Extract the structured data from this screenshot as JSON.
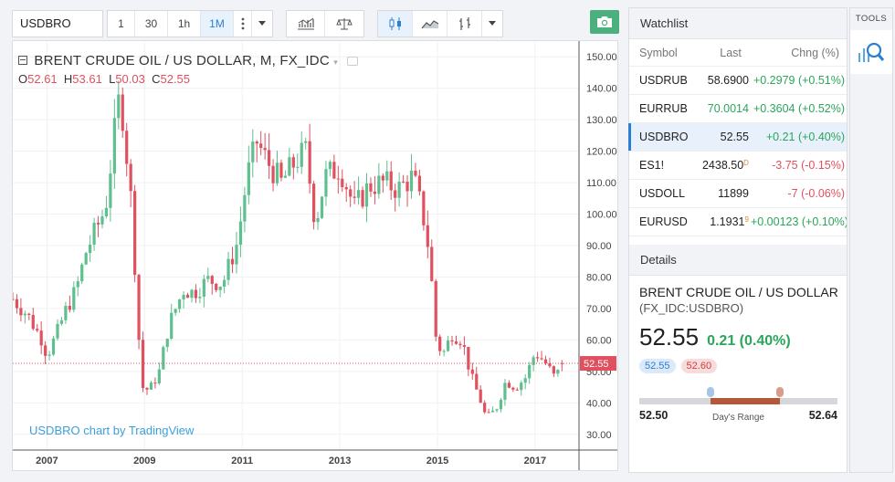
{
  "toolbar": {
    "symbol": "USDBRO",
    "intervals": [
      "1",
      "30",
      "1h",
      "1M"
    ],
    "active_interval": "1M",
    "icons": [
      "more-vertical-icon",
      "chevron-down-icon",
      "indicators-icon",
      "compare-icon",
      "candles-icon",
      "line-chart-icon",
      "bars-icon",
      "chevron-down-icon",
      "camera-icon"
    ]
  },
  "legend": {
    "title": "BRENT CRUDE OIL / US DOLLAR, M, FX_IDC",
    "o_label": "O",
    "o": "52.61",
    "h_label": "H",
    "h": "53.61",
    "l_label": "L",
    "l": "50.03",
    "c_label": "C",
    "c": "52.55"
  },
  "watermark": "USDBRO chart by TradingView",
  "colors": {
    "up": "#5fbf8f",
    "down": "#e0505f",
    "accent": "#2a7fd4",
    "price_line": "#e0505f"
  },
  "chart_data": {
    "type": "candlestick",
    "title": "BRENT CRUDE OIL / US DOLLAR, M, FX_IDC",
    "y_ticks": [
      "150.00",
      "140.00",
      "130.00",
      "120.00",
      "110.00",
      "100.00",
      "90.00",
      "80.00",
      "70.00",
      "60.00",
      "50.00",
      "40.00",
      "30.00"
    ],
    "ylim": [
      25,
      155
    ],
    "x_ticks": [
      "2007",
      "2009",
      "2011",
      "2013",
      "2015",
      "2017"
    ],
    "x_tick_years": [
      2007,
      2009,
      2011,
      2013,
      2015,
      2017
    ],
    "xlim": [
      2006.3,
      2017.9
    ],
    "last_price": 52.55,
    "last_price_label": "52.55",
    "closes": [
      {
        "x": 2006.3,
        "y": 73
      },
      {
        "x": 2006.6,
        "y": 68
      },
      {
        "x": 2006.9,
        "y": 60
      },
      {
        "x": 2007.0,
        "y": 55
      },
      {
        "x": 2007.2,
        "y": 62
      },
      {
        "x": 2007.4,
        "y": 70
      },
      {
        "x": 2007.6,
        "y": 76
      },
      {
        "x": 2007.8,
        "y": 88
      },
      {
        "x": 2008.0,
        "y": 95
      },
      {
        "x": 2008.2,
        "y": 102
      },
      {
        "x": 2008.4,
        "y": 128
      },
      {
        "x": 2008.5,
        "y": 139
      },
      {
        "x": 2008.6,
        "y": 124
      },
      {
        "x": 2008.75,
        "y": 100
      },
      {
        "x": 2008.85,
        "y": 68
      },
      {
        "x": 2008.95,
        "y": 45
      },
      {
        "x": 2009.1,
        "y": 44
      },
      {
        "x": 2009.3,
        "y": 50
      },
      {
        "x": 2009.5,
        "y": 65
      },
      {
        "x": 2009.8,
        "y": 76
      },
      {
        "x": 2010.0,
        "y": 75
      },
      {
        "x": 2010.3,
        "y": 79
      },
      {
        "x": 2010.6,
        "y": 78
      },
      {
        "x": 2010.9,
        "y": 91
      },
      {
        "x": 2011.1,
        "y": 112
      },
      {
        "x": 2011.3,
        "y": 123
      },
      {
        "x": 2011.5,
        "y": 117
      },
      {
        "x": 2011.8,
        "y": 110
      },
      {
        "x": 2012.1,
        "y": 117
      },
      {
        "x": 2012.3,
        "y": 120
      },
      {
        "x": 2012.5,
        "y": 97
      },
      {
        "x": 2012.7,
        "y": 112
      },
      {
        "x": 2013.0,
        "y": 115
      },
      {
        "x": 2013.3,
        "y": 102
      },
      {
        "x": 2013.6,
        "y": 109
      },
      {
        "x": 2013.9,
        "y": 110
      },
      {
        "x": 2014.2,
        "y": 108
      },
      {
        "x": 2014.5,
        "y": 112
      },
      {
        "x": 2014.7,
        "y": 100
      },
      {
        "x": 2014.85,
        "y": 86
      },
      {
        "x": 2014.95,
        "y": 62
      },
      {
        "x": 2015.1,
        "y": 55
      },
      {
        "x": 2015.3,
        "y": 62
      },
      {
        "x": 2015.5,
        "y": 60
      },
      {
        "x": 2015.7,
        "y": 48
      },
      {
        "x": 2015.9,
        "y": 40
      },
      {
        "x": 2016.0,
        "y": 35
      },
      {
        "x": 2016.2,
        "y": 38
      },
      {
        "x": 2016.4,
        "y": 47
      },
      {
        "x": 2016.6,
        "y": 45
      },
      {
        "x": 2016.8,
        "y": 48
      },
      {
        "x": 2017.0,
        "y": 56
      },
      {
        "x": 2017.2,
        "y": 53
      },
      {
        "x": 2017.4,
        "y": 48
      },
      {
        "x": 2017.6,
        "y": 52.55
      }
    ]
  },
  "watchlist": {
    "title": "Watchlist",
    "columns": [
      "Symbol",
      "Last",
      "Chng (%)"
    ],
    "rows": [
      {
        "symbol": "USDRUB",
        "last": "58.6900",
        "last_sup": "",
        "chg": "+0.2979 (+0.51%)",
        "dir": "up",
        "last_colored": false
      },
      {
        "symbol": "EURRUB",
        "last": "70.0014",
        "last_sup": "",
        "chg": "+0.3604 (+0.52%)",
        "dir": "up",
        "last_colored": true
      },
      {
        "symbol": "USDBRO",
        "last": "52.55",
        "last_sup": "",
        "chg": "+0.21 (+0.40%)",
        "dir": "up",
        "last_colored": false,
        "selected": true
      },
      {
        "symbol": "ES1!",
        "last": "2438.50",
        "last_sup": "D",
        "chg": "-3.75 (-0.15%)",
        "dir": "down",
        "last_colored": false
      },
      {
        "symbol": "USDOLL",
        "last": "11899",
        "last_sup": "",
        "chg": "-7 (-0.06%)",
        "dir": "down",
        "last_colored": false
      },
      {
        "symbol": "EURUSD",
        "last": "1.1931",
        "last_sup": "9",
        "chg": "+0.00123 (+0.10%)",
        "dir": "up",
        "last_colored": false
      }
    ]
  },
  "details": {
    "title": "Details",
    "name": "BRENT CRUDE OIL / US DOLLAR",
    "exchange": "(FX_IDC:USDBRO)",
    "price": "52.55",
    "change": "0.21 (0.40%)",
    "bid": "52.55",
    "ask": "52.60",
    "range_low": "52.50",
    "range_high": "52.64",
    "range_label": "Day's Range",
    "range_bid_pct": 0.36,
    "range_ask_pct": 0.71
  },
  "tools": {
    "label": "TOOLS",
    "icon": "search-chart-icon"
  }
}
